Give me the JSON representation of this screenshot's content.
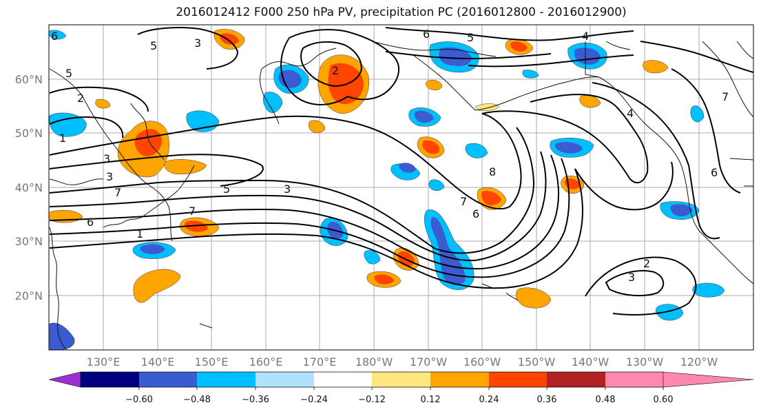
{
  "title": "2016012412 F000 250 hPa PV, precipitation PC (2016012800 - 2016012900)",
  "lat_labels": [
    "60°N",
    "50°N",
    "40°N",
    "30°N",
    "20°N"
  ],
  "lon_labels": [
    "130°E",
    "140°E",
    "150°E",
    "160°E",
    "170°E",
    "180°W",
    "170°W",
    "160°W",
    "150°W",
    "140°W",
    "130°W",
    "120°W"
  ],
  "colorbar": {
    "tick_labels": [
      "−0.60",
      "−0.48",
      "−0.36",
      "−0.24",
      "−0.12",
      "0.12",
      "0.24",
      "0.36",
      "0.48",
      "0.60"
    ],
    "colors": [
      "#9b30d0",
      "#000080",
      "#3a5cd0",
      "#00bfff",
      "#b0e2ff",
      "#ffffff",
      "#ffe680",
      "#ffa500",
      "#ff4500",
      "#b22222",
      "#ff88b0"
    ]
  },
  "contour_labels": [
    "6",
    "5",
    "6",
    "5",
    "4",
    "5",
    "2",
    "1",
    "3",
    "3",
    "3",
    "7",
    "7",
    "5",
    "3",
    "6",
    "1",
    "8",
    "7",
    "6",
    "2",
    "3",
    "7",
    "6",
    "4",
    "2"
  ]
}
